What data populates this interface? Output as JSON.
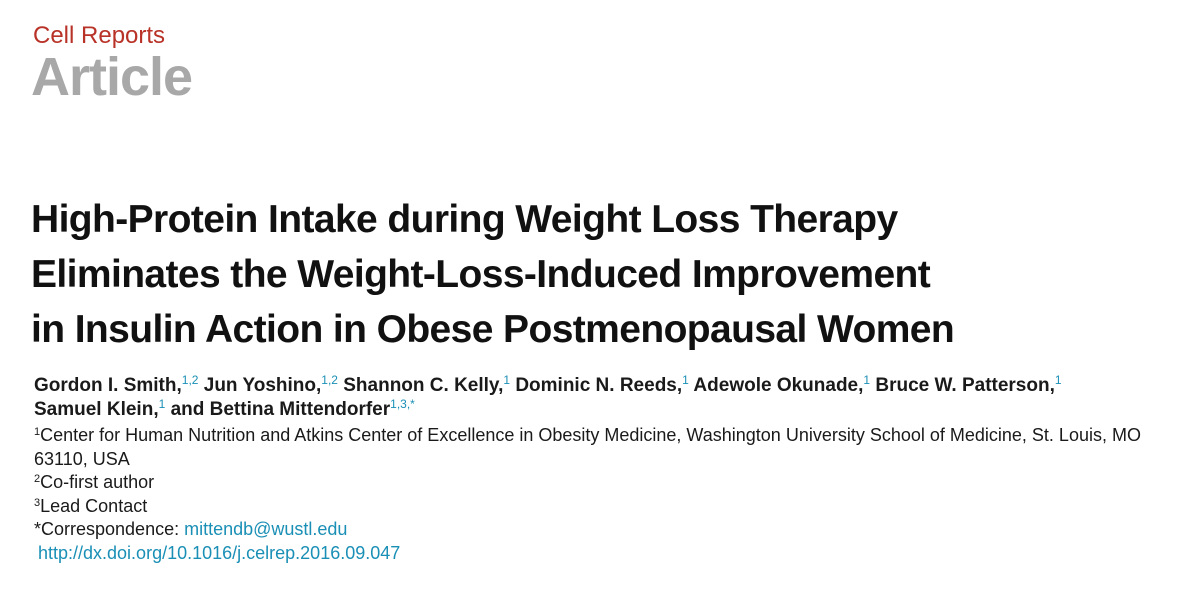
{
  "header": {
    "journal": "Cell Reports",
    "article_type": "Article"
  },
  "title_lines": [
    "High-Protein Intake during Weight Loss Therapy",
    "Eliminates the Weight-Loss-Induced Improvement",
    "in Insulin Action in Obese Postmenopausal Women"
  ],
  "authors": [
    {
      "name": "Gordon I. Smith,",
      "aff": "1,2"
    },
    {
      "name": "Jun Yoshino,",
      "aff": "1,2"
    },
    {
      "name": "Shannon C. Kelly,",
      "aff": "1"
    },
    {
      "name": "Dominic N. Reeds,",
      "aff": "1"
    },
    {
      "name": "Adewole Okunade,",
      "aff": "1"
    },
    {
      "name": "Bruce W. Patterson,",
      "aff": "1"
    },
    {
      "name": "Samuel Klein,",
      "aff": "1"
    },
    {
      "name": "and Bettina Mittendorfer",
      "aff": "1,3,*"
    }
  ],
  "affiliations": [
    {
      "mark": "1",
      "text": "Center for Human Nutrition and Atkins Center of Excellence in Obesity Medicine, Washington University School of Medicine, St. Louis, MO 63110, USA"
    },
    {
      "mark": "2",
      "text": "Co-first author"
    },
    {
      "mark": "3",
      "text": "Lead Contact"
    }
  ],
  "correspondence": {
    "label": "*Correspondence: ",
    "email": "mittendb@wustl.edu"
  },
  "doi": "http://dx.doi.org/10.1016/j.celrep.2016.09.047",
  "colors": {
    "journal": "#b83227",
    "article_type": "#a8a8a8",
    "link": "#1a8fb6"
  }
}
